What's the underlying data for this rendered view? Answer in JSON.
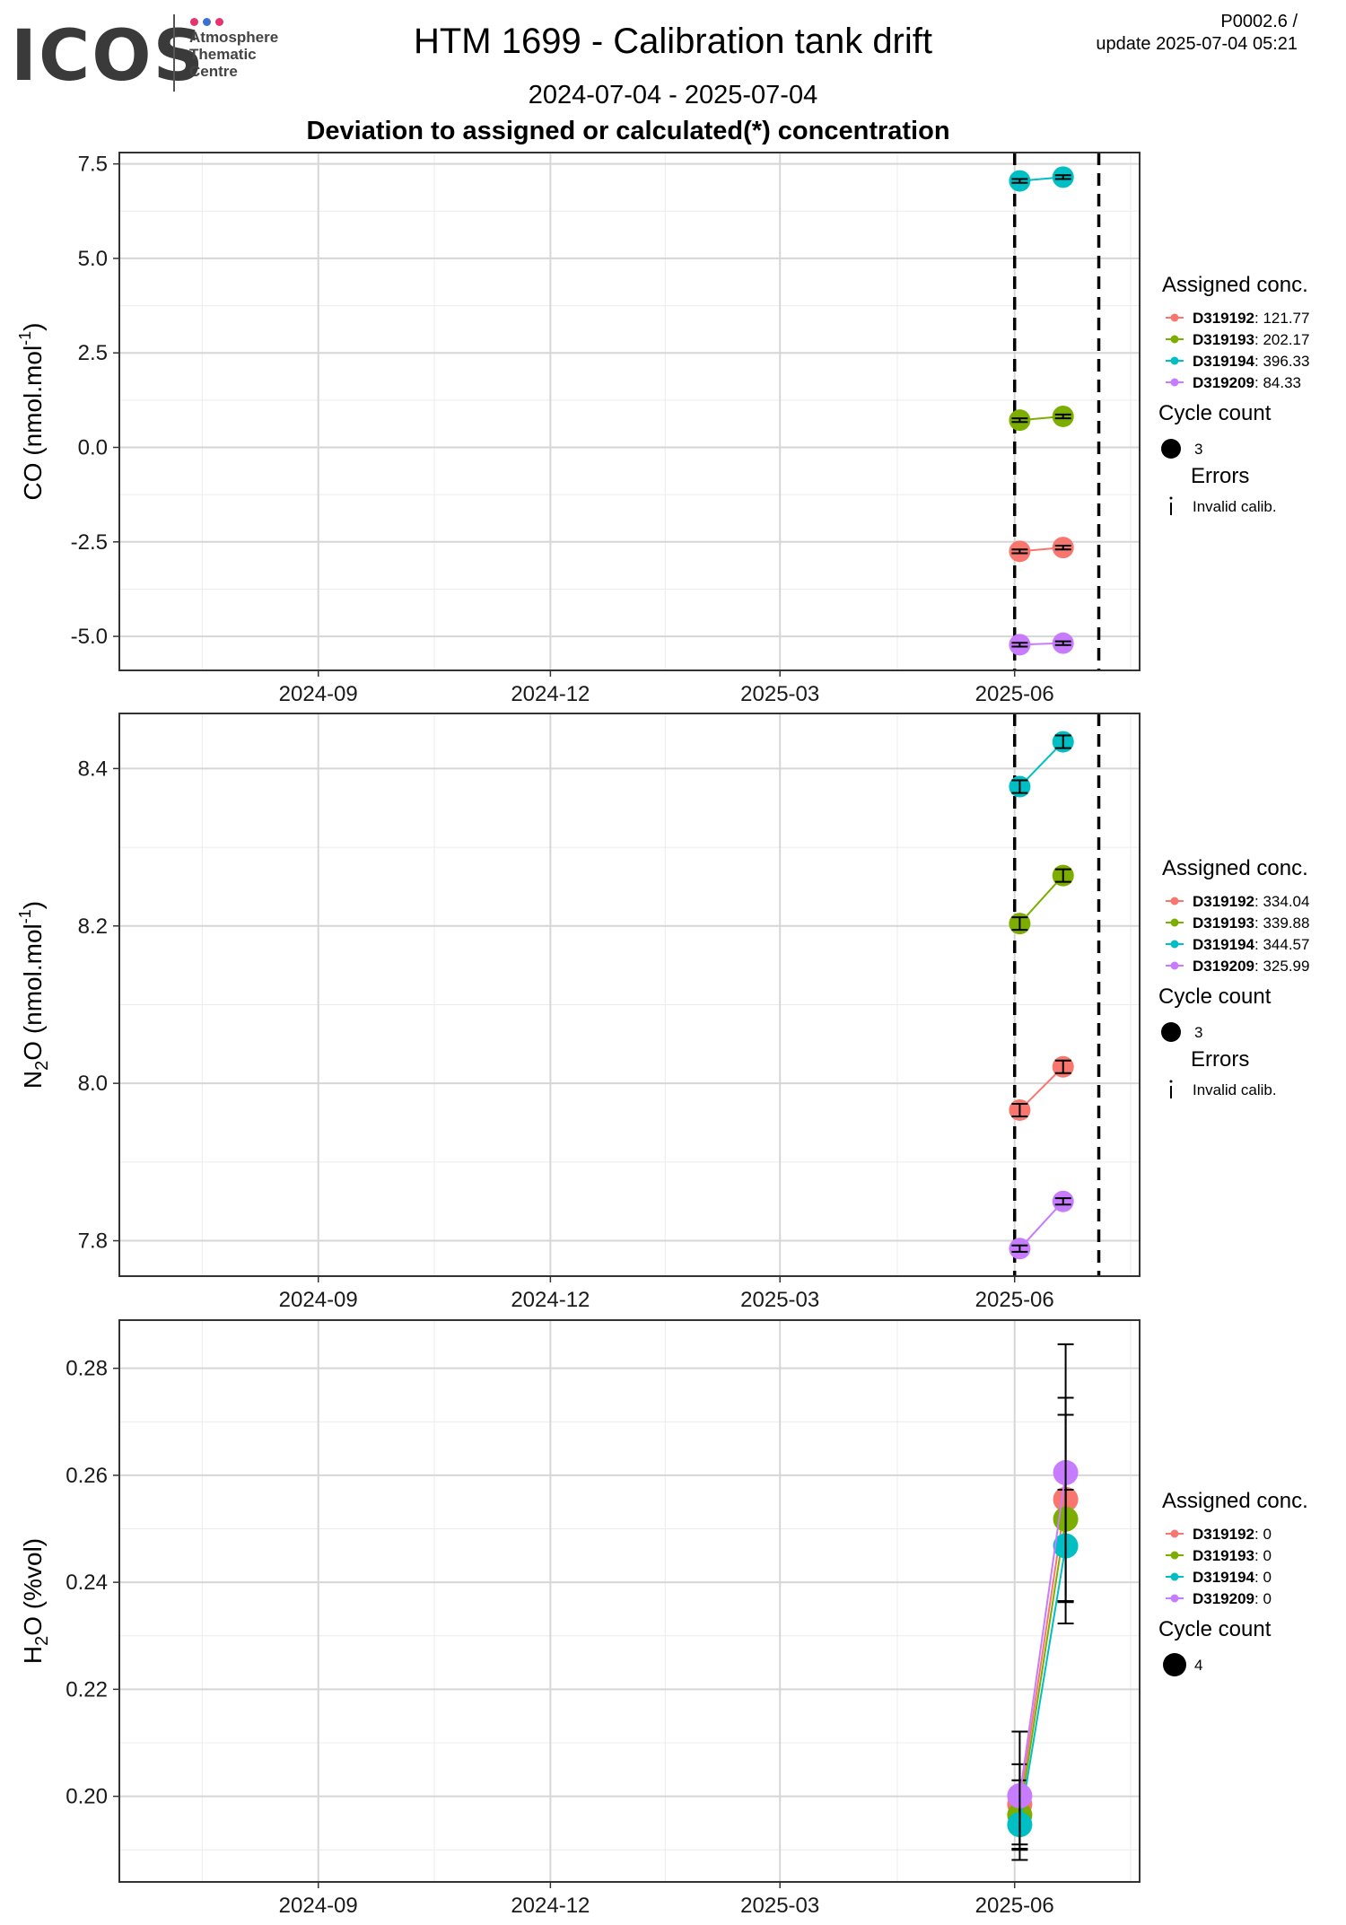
{
  "header": {
    "logo_text": "ICOS",
    "logo_sub": [
      "Atmosphere",
      "Thematic",
      "Centre"
    ],
    "title": "HTM 1699 - Calibration tank drift",
    "period": "2024-07-04 - 2025-07-04",
    "subtitle": "Deviation to assigned or calculated(*) concentration",
    "version": "P0002.6 /",
    "update": "update  2025-07-04 05:21"
  },
  "colors": {
    "D319192": "#F8766D",
    "D319193": "#7CAE00",
    "D319194": "#00BFC4",
    "D319209": "#C77CFF",
    "logo_dots": [
      "#e6336f",
      "#3b6fd1",
      "#e6336f"
    ]
  },
  "chart_data": [
    {
      "type": "scatter",
      "ylabel": "CO (nmol.mol-1)",
      "ylabel_main": "CO (nmol.mol",
      "ylabel_sup": "-1",
      "ylabel_end": ")",
      "x_ticks": [
        "2024-09",
        "2024-12",
        "2025-03",
        "2025-06"
      ],
      "xlim": [
        "2024-06-15",
        "2025-07-20"
      ],
      "ylim": [
        -5.9,
        7.8
      ],
      "y_ticks": [
        "7.5",
        "5.0",
        "2.5",
        "0.0",
        "-2.5",
        "-5.0"
      ],
      "y_tick_values": [
        7.5,
        5.0,
        2.5,
        0.0,
        -2.5,
        -5.0
      ],
      "vlines": [
        "2025-06-01",
        "2025-07-04"
      ],
      "grid": true,
      "series": [
        {
          "name": "D319192",
          "assigned": "121.77",
          "x": [
            "2025-06-03",
            "2025-06-20"
          ],
          "y": [
            -2.75,
            -2.65
          ],
          "err": [
            0.05,
            0.05
          ]
        },
        {
          "name": "D319193",
          "assigned": "202.17",
          "x": [
            "2025-06-03",
            "2025-06-20"
          ],
          "y": [
            0.72,
            0.82
          ],
          "err": [
            0.05,
            0.05
          ]
        },
        {
          "name": "D319194",
          "assigned": "396.33",
          "x": [
            "2025-06-03",
            "2025-06-20"
          ],
          "y": [
            7.05,
            7.15
          ],
          "err": [
            0.05,
            0.05
          ]
        },
        {
          "name": "D319209",
          "assigned": "84.33",
          "x": [
            "2025-06-03",
            "2025-06-20"
          ],
          "y": [
            -5.22,
            -5.18
          ],
          "err": [
            0.05,
            0.05
          ]
        }
      ],
      "legend": {
        "placement": "right",
        "assigned_title": "Assigned conc.",
        "cycle_title": "Cycle count",
        "cycle_value": "3",
        "errors_title": "Errors",
        "errors_label": "Invalid calib."
      }
    },
    {
      "type": "scatter",
      "ylabel": "N2O (nmol.mol-1)",
      "ylabel_main": "N",
      "ylabel_sub": "2",
      "ylabel_mid": "O (nmol.mol",
      "ylabel_sup": "-1",
      "ylabel_end": ")",
      "x_ticks": [
        "2024-09",
        "2024-12",
        "2025-03",
        "2025-06"
      ],
      "xlim": [
        "2024-06-15",
        "2025-07-20"
      ],
      "ylim": [
        7.755,
        8.47
      ],
      "y_ticks": [
        "8.4",
        "8.2",
        "8.0",
        "7.8"
      ],
      "y_tick_values": [
        8.4,
        8.2,
        8.0,
        7.8
      ],
      "vlines": [
        "2025-06-01",
        "2025-07-04"
      ],
      "grid": true,
      "series": [
        {
          "name": "D319192",
          "assigned": "334.04",
          "x": [
            "2025-06-03",
            "2025-06-20"
          ],
          "y": [
            7.966,
            8.021
          ],
          "err": [
            0.008,
            0.008
          ]
        },
        {
          "name": "D319193",
          "assigned": "339.88",
          "x": [
            "2025-06-03",
            "2025-06-20"
          ],
          "y": [
            8.203,
            8.264
          ],
          "err": [
            0.008,
            0.008
          ]
        },
        {
          "name": "D319194",
          "assigned": "344.57",
          "x": [
            "2025-06-03",
            "2025-06-20"
          ],
          "y": [
            8.377,
            8.434
          ],
          "err": [
            0.008,
            0.008
          ]
        },
        {
          "name": "D319209",
          "assigned": "325.99",
          "x": [
            "2025-06-03",
            "2025-06-20"
          ],
          "y": [
            7.79,
            7.85
          ],
          "err": [
            0.004,
            0.004
          ]
        }
      ],
      "legend": {
        "placement": "right",
        "assigned_title": "Assigned conc.",
        "cycle_title": "Cycle count",
        "cycle_value": "3",
        "errors_title": "Errors",
        "errors_label": "Invalid calib."
      }
    },
    {
      "type": "scatter",
      "ylabel": "H2O (%vol)",
      "ylabel_main": "H",
      "ylabel_sub": "2",
      "ylabel_mid": "O (%vol)",
      "ylabel_sup": "",
      "ylabel_end": "",
      "x_ticks": [
        "2024-09",
        "2024-12",
        "2025-03",
        "2025-06"
      ],
      "xlim": [
        "2024-06-15",
        "2025-07-20"
      ],
      "ylim": [
        0.184,
        0.289
      ],
      "y_ticks": [
        "0.28",
        "0.26",
        "0.24",
        "0.22",
        "0.20"
      ],
      "y_tick_values": [
        0.28,
        0.26,
        0.24,
        0.22,
        0.2
      ],
      "vlines": [],
      "grid": true,
      "series": [
        {
          "name": "D319192",
          "assigned": "0",
          "x": [
            "2025-06-03",
            "2025-06-21"
          ],
          "y": [
            0.1985,
            0.2555
          ],
          "err": [
            0.0075,
            0.019
          ]
        },
        {
          "name": "D319193",
          "assigned": "0",
          "x": [
            "2025-06-03",
            "2025-06-21"
          ],
          "y": [
            0.1965,
            0.2518
          ],
          "err": [
            0.0065,
            0.0195
          ]
        },
        {
          "name": "D319194",
          "assigned": "0",
          "x": [
            "2025-06-03",
            "2025-06-21"
          ],
          "y": [
            0.1947,
            0.2468
          ],
          "err": [
            0.0045,
            0.0105
          ]
        },
        {
          "name": "D319209",
          "assigned": "0",
          "x": [
            "2025-06-03",
            "2025-06-21"
          ],
          "y": [
            0.2001,
            0.2605
          ],
          "err": [
            0.012,
            0.024
          ]
        }
      ],
      "legend": {
        "placement": "right",
        "assigned_title": "Assigned conc.",
        "cycle_title": "Cycle count",
        "cycle_value": "4"
      }
    }
  ]
}
